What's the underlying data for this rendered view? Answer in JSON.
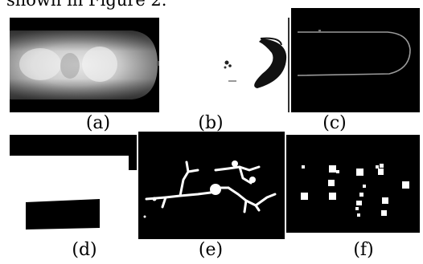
{
  "caption_fragment": "shown in Figure 2.",
  "panels": [
    {
      "id": "a",
      "label": "(a)"
    },
    {
      "id": "b",
      "label": "(b)"
    },
    {
      "id": "c",
      "label": "(c)"
    },
    {
      "id": "d",
      "label": "(d)"
    },
    {
      "id": "e",
      "label": "(e)"
    },
    {
      "id": "f",
      "label": "(f)"
    }
  ]
}
